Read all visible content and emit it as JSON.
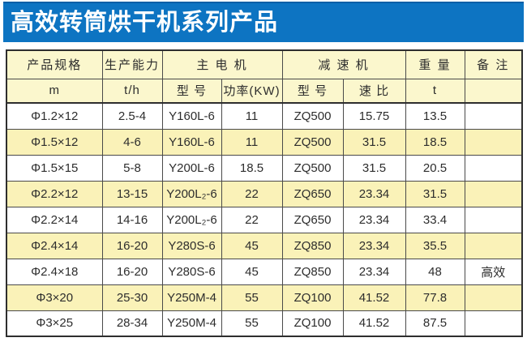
{
  "banner": {
    "title": "高效转筒烘干机系列产品",
    "bg_color": "#0d74c2",
    "text_color": "#ffffff"
  },
  "table": {
    "header_row1": {
      "spec": "产品规格",
      "capacity": "生产能力",
      "motor": "主 电 机",
      "reducer": "减 速 机",
      "weight": "重 量",
      "notes": "备 注"
    },
    "header_row2": {
      "spec_unit": "m",
      "capacity_unit": "t/h",
      "motor_model": "型 号",
      "motor_power": "功率(KW)",
      "reducer_model": "型 号",
      "reducer_ratio": "速 比",
      "weight_unit": "t",
      "notes_unit": ""
    },
    "rows": [
      [
        "Φ1.2×12",
        "2.5-4",
        "Y160L-6",
        "11",
        "ZQ500",
        "15.75",
        "13.5",
        ""
      ],
      [
        "Φ1.5×12",
        "4-6",
        "Y160L-6",
        "11",
        "ZQ500",
        "31.5",
        "18.5",
        ""
      ],
      [
        "Φ1.5×15",
        "5-8",
        "Y200L-6",
        "18.5",
        "ZQ500",
        "31.5",
        "20.5",
        ""
      ],
      [
        "Φ2.2×12",
        "13-15",
        "Y200L₂-6",
        "22",
        "ZQ650",
        "23.34",
        "31.5",
        ""
      ],
      [
        "Φ2.2×14",
        "14-16",
        "Y200L₂-6",
        "22",
        "ZQ650",
        "23.34",
        "33.4",
        ""
      ],
      [
        "Φ2.4×14",
        "16-20",
        "Y280S-6",
        "45",
        "ZQ850",
        "23.34",
        "35.5",
        ""
      ],
      [
        "Φ2.4×18",
        "16-20",
        "Y280S-6",
        "45",
        "ZQ850",
        "23.34",
        "48",
        "高效"
      ],
      [
        "Φ3×20",
        "25-30",
        "Y250M-4",
        "55",
        "ZQ100",
        "41.52",
        "77.8",
        ""
      ],
      [
        "Φ3×25",
        "28-34",
        "Y250M-4",
        "55",
        "ZQ100",
        "41.52",
        "87.5",
        ""
      ]
    ],
    "colors": {
      "header_bg": "#fbf7cd",
      "stripe_bg": "#faf2b8",
      "border": "#4a4a4a",
      "text": "#2d2d2d"
    }
  }
}
